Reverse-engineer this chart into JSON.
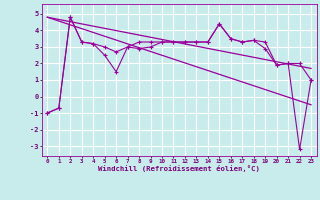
{
  "xlabel": "Windchill (Refroidissement éolien,°C)",
  "bg_color": "#c8ecec",
  "grid_color": "#ffffff",
  "line_color": "#9b009b",
  "x_hours": [
    0,
    1,
    2,
    3,
    4,
    5,
    6,
    7,
    8,
    9,
    10,
    11,
    12,
    13,
    14,
    15,
    16,
    17,
    18,
    19,
    20,
    21,
    22,
    23
  ],
  "series1": [
    -1,
    -0.7,
    4.8,
    3.3,
    3.2,
    3.0,
    2.7,
    3.0,
    2.9,
    3.0,
    3.3,
    3.3,
    3.3,
    3.3,
    3.3,
    4.4,
    3.5,
    3.3,
    3.4,
    2.9,
    1.9,
    2.0,
    2.0,
    1.0
  ],
  "series2": [
    -1,
    -0.7,
    4.8,
    3.3,
    3.2,
    2.5,
    1.5,
    3.0,
    3.3,
    3.3,
    3.3,
    3.3,
    3.3,
    3.3,
    3.3,
    4.4,
    3.5,
    3.3,
    3.4,
    3.3,
    1.9,
    2.0,
    -3.2,
    1.0
  ],
  "trend1_x": [
    0,
    23
  ],
  "trend1_y": [
    4.8,
    1.7
  ],
  "trend2_x": [
    0,
    23
  ],
  "trend2_y": [
    4.8,
    -0.5
  ],
  "ylim": [
    -3.6,
    5.6
  ],
  "xlim": [
    -0.5,
    23.5
  ],
  "yticks": [
    -3,
    -2,
    -1,
    0,
    1,
    2,
    3,
    4,
    5
  ],
  "xticks": [
    0,
    1,
    2,
    3,
    4,
    5,
    6,
    7,
    8,
    9,
    10,
    11,
    12,
    13,
    14,
    15,
    16,
    17,
    18,
    19,
    20,
    21,
    22,
    23
  ]
}
